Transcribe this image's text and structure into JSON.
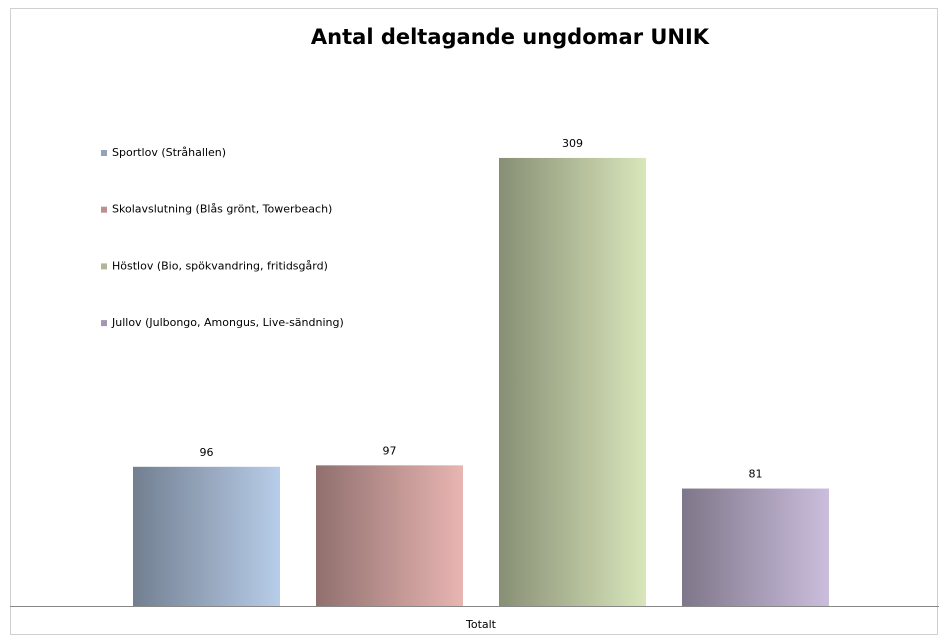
{
  "chart_data": {
    "type": "bar",
    "title": "Antal deltagande ungdomar UNIK",
    "categories": [
      "Totalt"
    ],
    "series": [
      {
        "name": "Sportlov (Stråhallen)",
        "color": "#b8cde9",
        "values": [
          96
        ]
      },
      {
        "name": "Skolavslutning (Blås grönt, Towerbeach)",
        "color": "#e8b5b2",
        "values": [
          97
        ]
      },
      {
        "name": "Höstlov (Bio, spökvandring, fritidsgård)",
        "color": "#d9e6bb",
        "values": [
          309
        ]
      },
      {
        "name": "Jullov (Julbongo, Amongus, Live-sändning)",
        "color": "#cbbedd",
        "values": [
          81
        ]
      }
    ],
    "legend": "left"
  }
}
